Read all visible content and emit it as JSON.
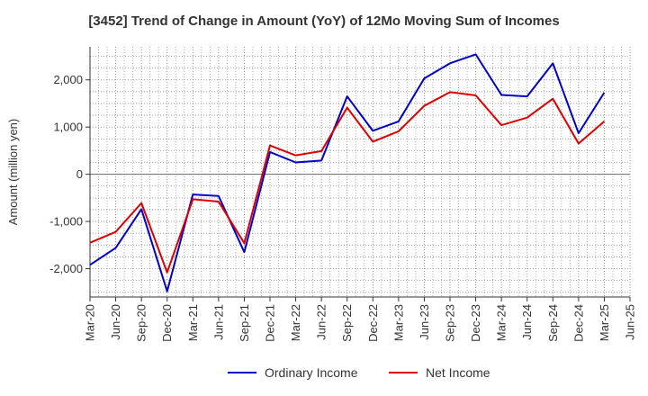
{
  "chart_data": {
    "type": "line",
    "title": "[3452]  Trend of Change in Amount (YoY) of 12Mo Moving Sum of Incomes",
    "xlabel": "",
    "ylabel": "Amount (million yen)",
    "ylim": [
      -2600,
      2700
    ],
    "yticks": [
      -2000,
      -1000,
      0,
      1000,
      2000
    ],
    "ytick_labels": [
      "-2,000",
      "-1,000",
      "0",
      "1,000",
      "2,000"
    ],
    "categories": [
      "Mar-20",
      "Jun-20",
      "Sep-20",
      "Dec-20",
      "Mar-21",
      "Jun-21",
      "Sep-21",
      "Dec-21",
      "Mar-22",
      "Jun-22",
      "Sep-22",
      "Dec-22",
      "Mar-23",
      "Jun-23",
      "Sep-23",
      "Dec-23",
      "Mar-24",
      "Jun-24",
      "Sep-24",
      "Dec-24",
      "Mar-25",
      "Jun-25"
    ],
    "grid": true,
    "legend_position": "bottom",
    "series": [
      {
        "name": "Ordinary Income",
        "color": "#0000cc",
        "values": [
          -1920,
          -1560,
          -740,
          -2480,
          -430,
          -460,
          -1650,
          470,
          250,
          290,
          1650,
          920,
          1120,
          2030,
          2350,
          2540,
          1680,
          1650,
          2350,
          870,
          1730,
          null
        ]
      },
      {
        "name": "Net Income",
        "color": "#dd0000",
        "values": [
          -1450,
          -1220,
          -610,
          -2080,
          -530,
          -580,
          -1460,
          610,
          400,
          490,
          1410,
          690,
          910,
          1450,
          1740,
          1670,
          1040,
          1200,
          1600,
          650,
          1120,
          null
        ]
      }
    ]
  }
}
